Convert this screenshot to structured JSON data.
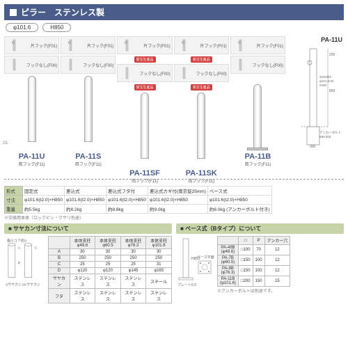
{
  "header": {
    "title": "ピラー　ステンレス製"
  },
  "chips": {
    "diameter": "φ101.6",
    "height": "H850"
  },
  "variants": {
    "kata_hook": "片フック(F01)",
    "hook_nashi": "フックなし(F00)",
    "ryo_hook": "両フック(F11)",
    "limited_badge": "受注生産品"
  },
  "gl_label": "GL",
  "products": [
    {
      "model": "PA-11U",
      "type": "固定式",
      "dim": "φ101.6(t2.0)×H850",
      "weight": "約5.5kg",
      "pillar_h": 95,
      "below": 12,
      "base": false,
      "badge": false
    },
    {
      "model": "PA-11S",
      "type": "差込式",
      "dim": "φ101.6(t2.0)×H850",
      "weight": "約8.2kg",
      "pillar_h": 95,
      "below": 12,
      "base": false,
      "badge": false
    },
    {
      "model": "PA-11SF",
      "type": "差込式フタ付",
      "dim": "φ101.6(t2.0)×H850",
      "weight": "約8.8kg",
      "pillar_h": 95,
      "below": 12,
      "base": false,
      "badge": true
    },
    {
      "model": "PA-11SK",
      "type": "差込式カギ付(南京錠25mm)",
      "dim": "φ101.6(t2.0)×H850",
      "weight": "約9.0kg",
      "pillar_h": 95,
      "below": 12,
      "base": false,
      "badge": true
    },
    {
      "model": "PA-11B",
      "type": "ベース式",
      "dim": "φ101.6(t2.0)×H850",
      "weight": "約6.0kg\n(アンカーボルト付き)",
      "pillar_h": 95,
      "below": 0,
      "base": true,
      "badge": false
    }
  ],
  "diagram_model": "PA-11U",
  "diagram_labels": {
    "h200": "200",
    "h850": "850",
    "mat": "SUS304\nφ101.6×t2\n#400",
    "anchor": "アンカーボルト\nM8×200",
    "w300": "300"
  },
  "spec_rows": {
    "shape_label": "形式",
    "dim_label": "寸法",
    "weight_label": "重量"
  },
  "exchange_note": "※交換用本体（ロックピン・クサリ別途）",
  "sayakan": {
    "title": "■ サヤカン寸法について",
    "core_label": "最小コア径D",
    "s_label": "Sサヤカン",
    "sk_label": "SKサヤカン",
    "columns": [
      "",
      "本体支柱\nφ48.6",
      "本体支柱\nφ60.5",
      "本体支柱\nφ76.3",
      "本体支柱\nφ101.6"
    ],
    "rows": [
      [
        "A",
        "30",
        "30",
        "30",
        "30"
      ],
      [
        "B",
        "250",
        "250",
        "250",
        "250"
      ],
      [
        "C",
        "25",
        "25",
        "25",
        "31"
      ],
      [
        "D",
        "φ120",
        "φ120",
        "φ145",
        "φ165"
      ],
      [
        "サヤカン",
        "ステンレス",
        "ステンレス",
        "ステンレス",
        "スチール"
      ],
      [
        "フタ",
        "ステンレス",
        "ステンレス",
        "ステンレス",
        "ステンレス"
      ]
    ],
    "a_marker": "A",
    "b_marker": "B",
    "c_marker": "C"
  },
  "base": {
    "title": "■ ベース式（Bタイプ）について",
    "plan_label": "ベース平面図",
    "plate_label": "プレート6.0",
    "h850": "H850",
    "columns": [
      "",
      "□",
      "P",
      "アンカー穴"
    ],
    "rows": [
      [
        "PA-48B\n(φ48.6)",
        "□100",
        "70",
        "12"
      ],
      [
        "PA-7B\n(φ60.5)",
        "□150",
        "100",
        "12"
      ],
      [
        "PA-8B\n(φ76.3)",
        "□150",
        "100",
        "12"
      ],
      [
        "PA-11B\n(φ101.6)",
        "□200",
        "150",
        "15"
      ]
    ],
    "note": "※アンカーボルトは別途です。"
  },
  "colors": {
    "header_bg": "#4a5d8a",
    "panel_bg": "#c7d4a8",
    "badge_bg": "#d43d3d"
  }
}
